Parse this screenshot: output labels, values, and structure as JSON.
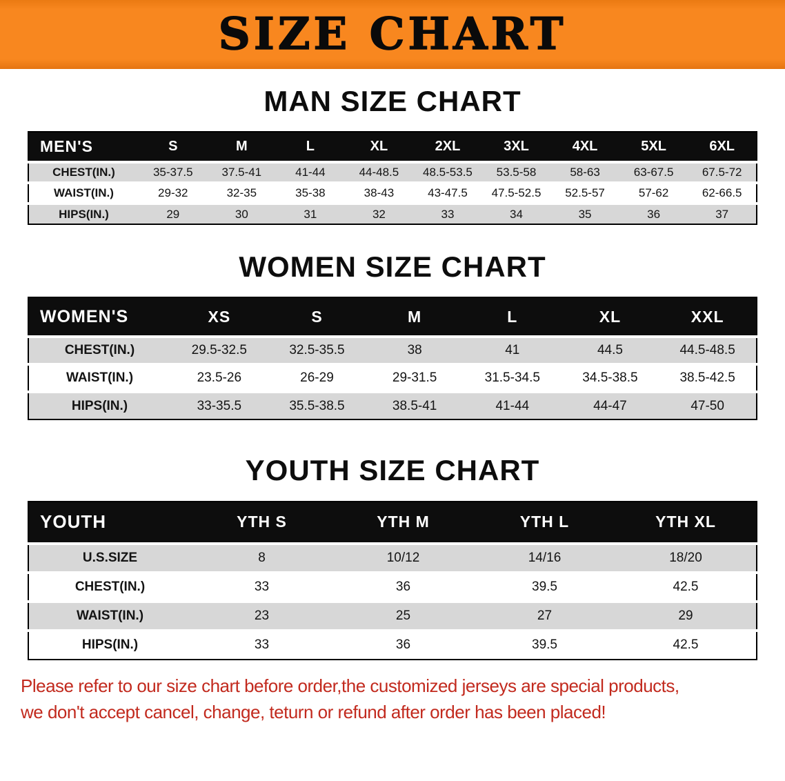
{
  "banner": {
    "title": "SIZE CHART"
  },
  "colors": {
    "banner_bg": "#f8871f",
    "table_header_bg": "#0d0d0d",
    "row_stripe": "#d7d7d7",
    "disclaimer_text": "#c22a1e"
  },
  "sections": [
    {
      "id": "men",
      "heading": "MAN SIZE CHART",
      "table": {
        "title": "MEN'S",
        "header": [
          "MEN'S",
          "S",
          "M",
          "L",
          "XL",
          "2XL",
          "3XL",
          "4XL",
          "5XL",
          "6XL"
        ],
        "rows": [
          [
            "CHEST(IN.)",
            "35-37.5",
            "37.5-41",
            "41-44",
            "44-48.5",
            "48.5-53.5",
            "53.5-58",
            "58-63",
            "63-67.5",
            "67.5-72"
          ],
          [
            "WAIST(IN.)",
            "29-32",
            "32-35",
            "35-38",
            "38-43",
            "43-47.5",
            "47.5-52.5",
            "52.5-57",
            "57-62",
            "62-66.5"
          ],
          [
            "HIPS(IN.)",
            "29",
            "30",
            "31",
            "32",
            "33",
            "34",
            "35",
            "36",
            "37"
          ]
        ]
      }
    },
    {
      "id": "women",
      "heading": "WOMEN SIZE CHART",
      "table": {
        "title": "WOMEN'S",
        "header": [
          "WOMEN'S",
          "XS",
          "S",
          "M",
          "L",
          "XL",
          "XXL"
        ],
        "rows": [
          [
            "CHEST(IN.)",
            "29.5-32.5",
            "32.5-35.5",
            "38",
            "41",
            "44.5",
            "44.5-48.5"
          ],
          [
            "WAIST(IN.)",
            "23.5-26",
            "26-29",
            "29-31.5",
            "31.5-34.5",
            "34.5-38.5",
            "38.5-42.5"
          ],
          [
            "HIPS(IN.)",
            "33-35.5",
            "35.5-38.5",
            "38.5-41",
            "41-44",
            "44-47",
            "47-50"
          ]
        ]
      }
    },
    {
      "id": "youth",
      "heading": "YOUTH SIZE CHART",
      "table": {
        "title": "YOUTH",
        "header": [
          "YOUTH",
          "YTH S",
          "YTH M",
          "YTH L",
          "YTH XL"
        ],
        "rows": [
          [
            "U.S.SIZE",
            "8",
            "10/12",
            "14/16",
            "18/20"
          ],
          [
            "CHEST(IN.)",
            "33",
            "36",
            "39.5",
            "42.5"
          ],
          [
            "WAIST(IN.)",
            "23",
            "25",
            "27",
            "29"
          ],
          [
            "HIPS(IN.)",
            "33",
            "36",
            "39.5",
            "42.5"
          ]
        ]
      }
    }
  ],
  "disclaimer": {
    "lines": [
      "Please refer to our size chart before order,the customized jerseys are special products,",
      "we don't accept cancel, change, teturn or refund after order has been placed!"
    ]
  }
}
